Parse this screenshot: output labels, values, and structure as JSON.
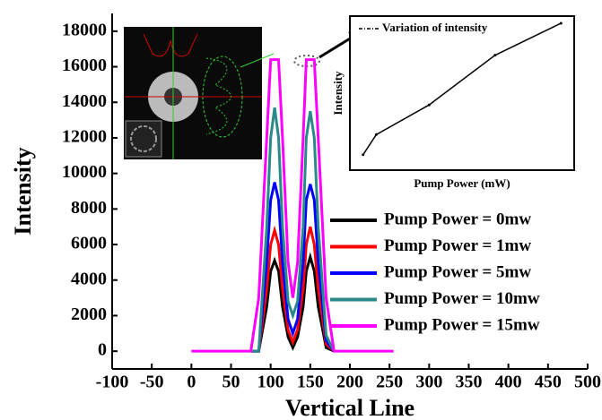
{
  "chart_data": [
    {
      "type": "line",
      "xlabel": "Vertical Line",
      "ylabel": "Intensity",
      "x": [
        0,
        75,
        85,
        95,
        100,
        105,
        110,
        115,
        122,
        128,
        134,
        141,
        145,
        150,
        155,
        160,
        170,
        180,
        255
      ],
      "series": [
        {
          "name": "Pump Power = 0mw",
          "color": "#000000",
          "values": [
            null,
            0,
            0,
            2500,
            4500,
            5100,
            4500,
            2500,
            800,
            200,
            800,
            2500,
            4500,
            5300,
            4500,
            2500,
            200,
            0,
            null
          ]
        },
        {
          "name": "Pump Power = 1mw",
          "color": "#ff0000",
          "values": [
            null,
            0,
            0,
            3500,
            6000,
            6800,
            6000,
            3500,
            1200,
            500,
            1200,
            3500,
            6000,
            7000,
            6000,
            3500,
            400,
            0,
            null
          ]
        },
        {
          "name": "Pump Power = 5mw",
          "color": "#0000ff",
          "values": [
            null,
            0,
            0,
            5000,
            8500,
            9500,
            8500,
            5000,
            1800,
            1000,
            1800,
            5000,
            8500,
            9400,
            8500,
            5000,
            600,
            0,
            null
          ]
        },
        {
          "name": "Pump Power = 10mw",
          "color": "#2a8a8a",
          "values": [
            null,
            0,
            0,
            7000,
            12000,
            13700,
            12000,
            7000,
            2800,
            2000,
            2800,
            7000,
            12000,
            13500,
            12000,
            7000,
            900,
            0,
            null
          ]
        },
        {
          "name": "Pump Power = 15mw",
          "color": "#ff00ff",
          "values": [
            0,
            0,
            3000,
            12000,
            16400,
            16400,
            16400,
            12000,
            5000,
            3000,
            5000,
            12000,
            16400,
            16400,
            16400,
            12000,
            3000,
            0,
            0
          ]
        }
      ],
      "xlim": [
        -100,
        500
      ],
      "xticks": [
        -100,
        -50,
        0,
        50,
        100,
        150,
        200,
        250,
        300,
        350,
        400,
        450,
        500
      ],
      "ylim": [
        -1000,
        19000
      ],
      "yticks": [
        0,
        2000,
        4000,
        6000,
        8000,
        10000,
        12000,
        14000,
        16000,
        18000
      ]
    },
    {
      "type": "line",
      "xlabel": "Pump Power (mW)",
      "ylabel": "Intensity",
      "x": [
        0,
        1,
        5,
        10,
        15
      ],
      "series": [
        {
          "name": "Variation of intensity",
          "color": "#000000",
          "values": [
            5300,
            7000,
            9500,
            13700,
            16400
          ]
        }
      ],
      "xlim": [
        -1,
        16
      ],
      "ylim": [
        4000,
        17000
      ]
    }
  ]
}
